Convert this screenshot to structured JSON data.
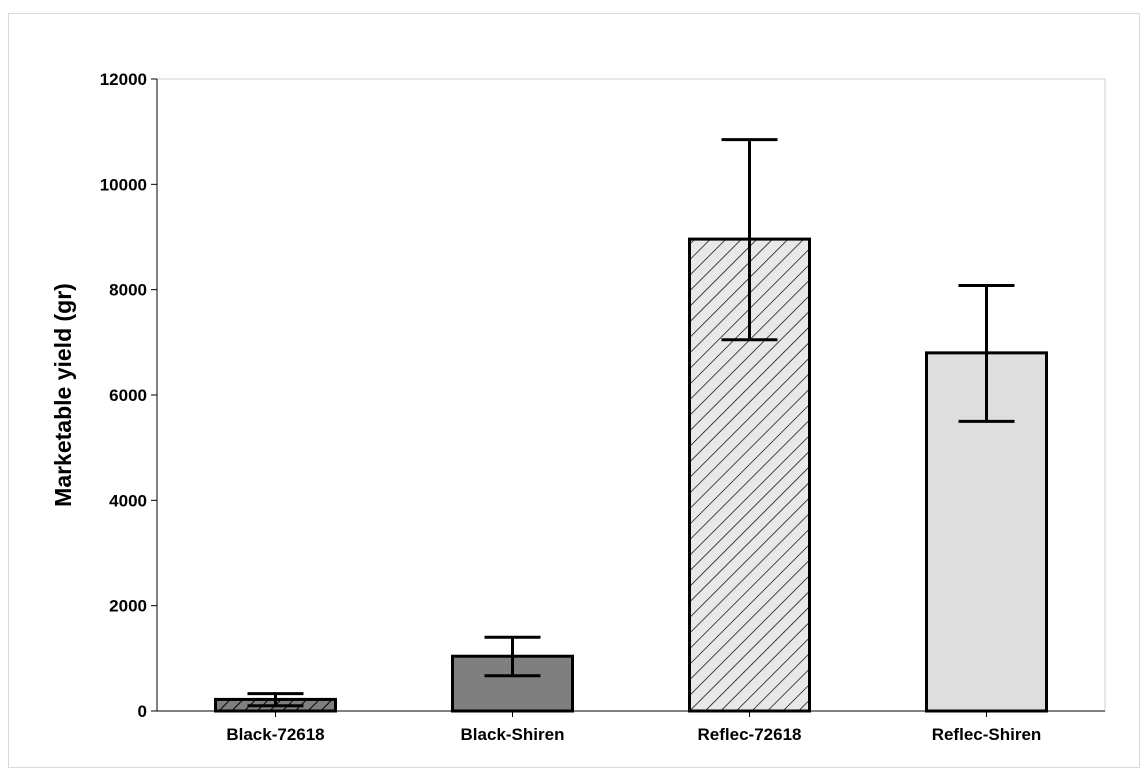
{
  "chart_data": {
    "type": "bar",
    "title": "",
    "xlabel": "",
    "ylabel": "Marketable yield (gr)",
    "ylim": [
      0,
      12000
    ],
    "yticks": [
      0,
      2000,
      4000,
      6000,
      8000,
      10000,
      12000
    ],
    "categories": [
      "Black-72618",
      "Black-Shiren",
      "Reflec-72618",
      "Reflec-Shiren"
    ],
    "values": [
      220,
      1040,
      8960,
      6800
    ],
    "error_low": [
      100,
      670,
      7050,
      5500
    ],
    "error_high": [
      330,
      1400,
      10850,
      8080
    ],
    "fills": [
      "hatched-dark",
      "solid-dark",
      "hatched-light",
      "solid-light"
    ],
    "colors": {
      "dark_fill": "#7f7f7f",
      "light_fill": "#dedede",
      "hatch_light_bg": "#e8e8e8",
      "outline": "#000000"
    },
    "grid": false,
    "legend": "none"
  }
}
